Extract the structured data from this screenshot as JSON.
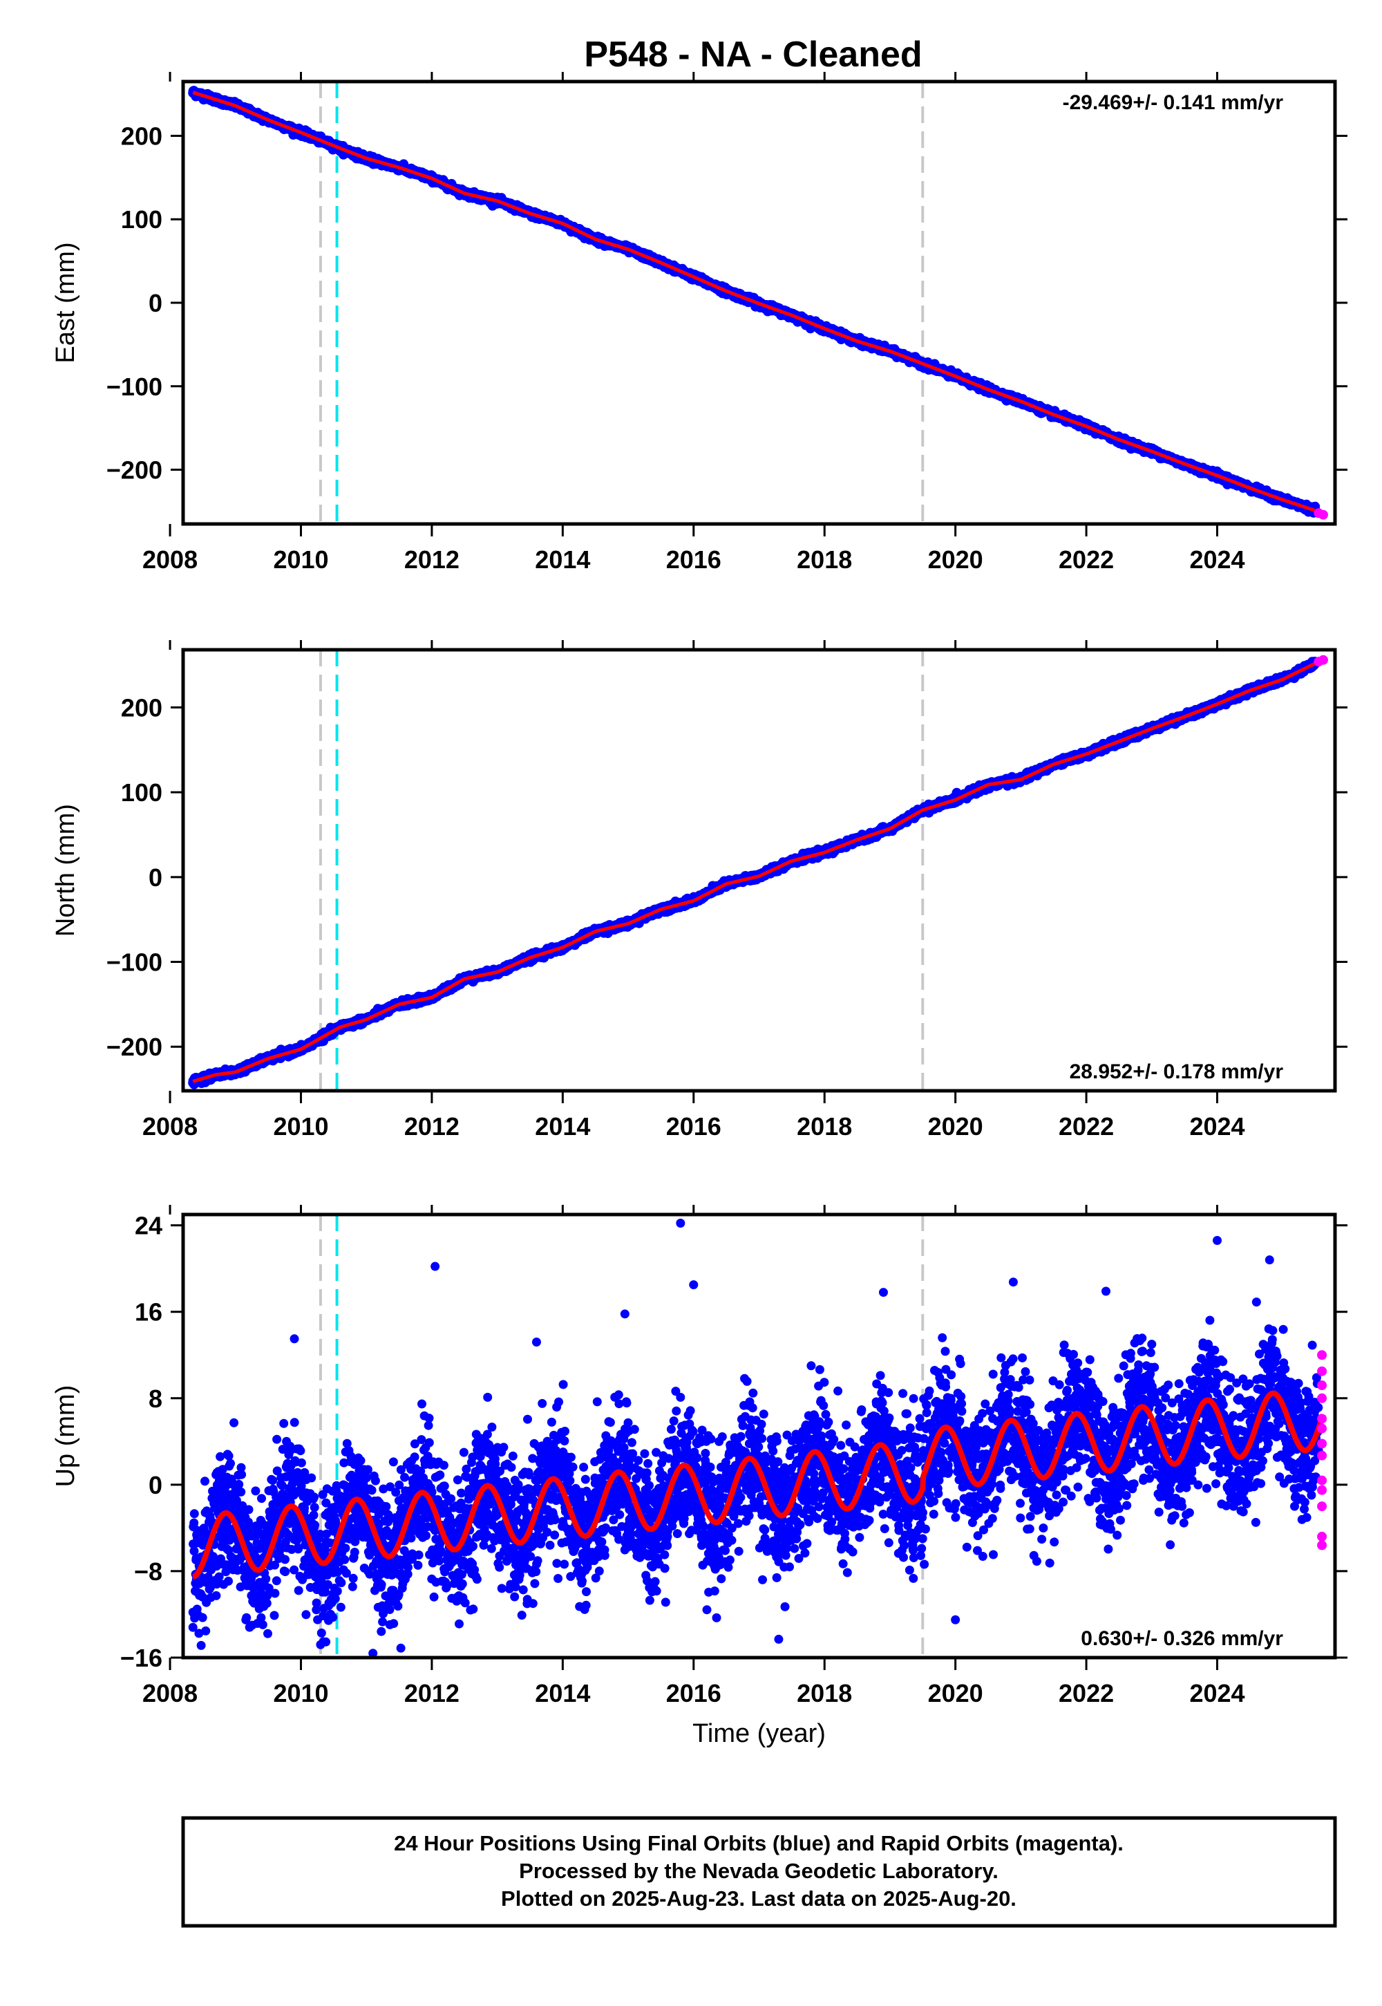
{
  "title": "P548  - NA - Cleaned",
  "footer": {
    "lines": [
      "24 Hour Positions Using Final Orbits (blue) and Rapid Orbits (magenta).",
      "Processed by the Nevada Geodetic Laboratory.",
      "Plotted on 2025-Aug-23. Last data on 2025-Aug-20."
    ]
  },
  "colors": {
    "final_orbits": "#0000ff",
    "rapid_orbits": "#ff00ff",
    "model_fit": "#ff0000",
    "equipment_change": "#c8c8c8",
    "earthquake_event": "#00e5ee"
  },
  "chart_data": [
    {
      "type": "scatter",
      "component": "east",
      "title": "",
      "xlabel": "",
      "ylabel": "East (mm)",
      "xlim": [
        2008.2,
        2025.8
      ],
      "ylim": [
        -265,
        265
      ],
      "x_ticks": [
        "2008",
        "2010",
        "2012",
        "2014",
        "2016",
        "2018",
        "2020",
        "2022",
        "2024"
      ],
      "y_ticks": [
        "200",
        "100",
        "0",
        "−100",
        "−200"
      ],
      "y_tick_values": [
        200,
        100,
        0,
        -100,
        -200
      ],
      "rate_label": "-29.469+/- 0.141 mm/yr",
      "rate_label_position": "top-right",
      "vertical_lines": [
        {
          "x": 2010.3,
          "style": "dashed",
          "color": "gray"
        },
        {
          "x": 2010.55,
          "style": "dashed",
          "color": "cyan"
        },
        {
          "x": 2019.5,
          "style": "dashed",
          "color": "gray"
        }
      ],
      "series": [
        {
          "name": "Final Orbits (blue)",
          "marker": "dot",
          "points": [
            [
              2008.35,
              252
            ],
            [
              2009.0,
              236
            ],
            [
              2009.5,
              219
            ],
            [
              2010.0,
              204
            ],
            [
              2010.6,
              185
            ],
            [
              2011.0,
              173
            ],
            [
              2011.5,
              162
            ],
            [
              2012.0,
              149
            ],
            [
              2012.5,
              131
            ],
            [
              2013.0,
              122
            ],
            [
              2013.5,
              107
            ],
            [
              2014.0,
              95
            ],
            [
              2014.5,
              76
            ],
            [
              2015.0,
              64
            ],
            [
              2015.5,
              48
            ],
            [
              2016.0,
              31
            ],
            [
              2016.5,
              14
            ],
            [
              2017.0,
              -1
            ],
            [
              2017.5,
              -15
            ],
            [
              2018.0,
              -31
            ],
            [
              2018.5,
              -46
            ],
            [
              2019.0,
              -58
            ],
            [
              2019.5,
              -73
            ],
            [
              2020.0,
              -88
            ],
            [
              2020.5,
              -104
            ],
            [
              2021.0,
              -118
            ],
            [
              2021.5,
              -134
            ],
            [
              2022.0,
              -148
            ],
            [
              2022.5,
              -164
            ],
            [
              2023.0,
              -178
            ],
            [
              2023.5,
              -193
            ],
            [
              2024.0,
              -207
            ],
            [
              2024.5,
              -222
            ],
            [
              2025.0,
              -236
            ],
            [
              2025.5,
              -249
            ]
          ]
        },
        {
          "name": "Rapid Orbits (magenta)",
          "marker": "dot",
          "points": [
            [
              2025.55,
              -252
            ],
            [
              2025.62,
              -254
            ]
          ]
        },
        {
          "name": "model fit",
          "marker": "line",
          "points": [
            [
              2008.35,
              252
            ],
            [
              2010.3,
              195
            ],
            [
              2010.55,
              186
            ],
            [
              2019.5,
              -73
            ],
            [
              2025.62,
              -253
            ]
          ]
        }
      ]
    },
    {
      "type": "scatter",
      "component": "north",
      "title": "",
      "xlabel": "",
      "ylabel": "North (mm)",
      "xlim": [
        2008.2,
        2025.8
      ],
      "ylim": [
        -252,
        268
      ],
      "x_ticks": [
        "2008",
        "2010",
        "2012",
        "2014",
        "2016",
        "2018",
        "2020",
        "2022",
        "2024"
      ],
      "y_ticks": [
        "200",
        "100",
        "0",
        "−100",
        "−200"
      ],
      "y_tick_values": [
        200,
        100,
        0,
        -100,
        -200
      ],
      "rate_label": "28.952+/- 0.178 mm/yr",
      "rate_label_position": "bottom-right",
      "vertical_lines": [
        {
          "x": 2010.3,
          "style": "dashed",
          "color": "gray"
        },
        {
          "x": 2010.55,
          "style": "dashed",
          "color": "cyan"
        },
        {
          "x": 2019.5,
          "style": "dashed",
          "color": "gray"
        }
      ],
      "series": [
        {
          "name": "Final Orbits (blue)",
          "marker": "dot",
          "points": [
            [
              2008.35,
              -241
            ],
            [
              2008.7,
              -233
            ],
            [
              2009.0,
              -230
            ],
            [
              2009.5,
              -214
            ],
            [
              2010.0,
              -203
            ],
            [
              2010.6,
              -177
            ],
            [
              2011.0,
              -168
            ],
            [
              2011.5,
              -150
            ],
            [
              2012.0,
              -142
            ],
            [
              2012.5,
              -120
            ],
            [
              2013.0,
              -112
            ],
            [
              2013.5,
              -95
            ],
            [
              2014.0,
              -83
            ],
            [
              2014.5,
              -64
            ],
            [
              2015.0,
              -55
            ],
            [
              2015.5,
              -38
            ],
            [
              2016.0,
              -28
            ],
            [
              2016.5,
              -8
            ],
            [
              2017.0,
              1
            ],
            [
              2017.5,
              19
            ],
            [
              2018.0,
              29
            ],
            [
              2018.5,
              44
            ],
            [
              2019.0,
              57
            ],
            [
              2019.5,
              79
            ],
            [
              2020.0,
              91
            ],
            [
              2020.5,
              109
            ],
            [
              2021.0,
              115
            ],
            [
              2021.5,
              133
            ],
            [
              2022.0,
              145
            ],
            [
              2022.5,
              160
            ],
            [
              2023.0,
              175
            ],
            [
              2023.5,
              189
            ],
            [
              2024.0,
              204
            ],
            [
              2024.5,
              220
            ],
            [
              2025.0,
              233
            ],
            [
              2025.5,
              252
            ]
          ]
        },
        {
          "name": "Rapid Orbits (magenta)",
          "marker": "dot",
          "points": [
            [
              2025.55,
              254
            ],
            [
              2025.62,
              256
            ]
          ]
        },
        {
          "name": "model fit",
          "marker": "line",
          "points": [
            [
              2008.35,
              -241
            ],
            [
              2010.3,
              -190
            ],
            [
              2010.55,
              -178
            ],
            [
              2019.5,
              81
            ],
            [
              2025.62,
              255
            ]
          ]
        }
      ]
    },
    {
      "type": "scatter",
      "component": "up",
      "title": "",
      "xlabel": "Time (year)",
      "ylabel": "Up (mm)",
      "xlim": [
        2008.2,
        2025.8
      ],
      "ylim": [
        -16,
        25
      ],
      "x_ticks": [
        "2008",
        "2010",
        "2012",
        "2014",
        "2016",
        "2018",
        "2020",
        "2022",
        "2024"
      ],
      "y_ticks": [
        "24",
        "16",
        "8",
        "0",
        "−8",
        "−16"
      ],
      "y_tick_values": [
        24,
        16,
        8,
        0,
        -8,
        -16
      ],
      "rate_label": "0.630+/- 0.326 mm/yr",
      "rate_label_position": "bottom-right",
      "vertical_lines": [
        {
          "x": 2010.3,
          "style": "dashed",
          "color": "gray"
        },
        {
          "x": 2010.55,
          "style": "dashed",
          "color": "cyan"
        },
        {
          "x": 2019.5,
          "style": "dashed",
          "color": "gray"
        }
      ],
      "seasonal_model": {
        "rate_mm_per_yr": 0.63,
        "annual_amplitude_mm": 2.8,
        "outliers": [
          [
            2015.8,
            24.2
          ],
          [
            2016.0,
            18.5
          ],
          [
            2012.05,
            20.2
          ],
          [
            2018.9,
            17.8
          ],
          [
            2022.3,
            17.9
          ],
          [
            2024.0,
            22.6
          ],
          [
            2024.8,
            20.8
          ],
          [
            2011.1,
            -15.6
          ],
          [
            2010.3,
            -14.8
          ],
          [
            2017.3,
            -14.3
          ],
          [
            2020.0,
            -12.5
          ],
          [
            2008.35,
            -13.2
          ],
          [
            2014.95,
            15.8
          ],
          [
            2009.9,
            13.5
          ],
          [
            2013.6,
            13.2
          ],
          [
            2019.8,
            13.6
          ],
          [
            2023.0,
            13.0
          ],
          [
            2024.6,
            16.9
          ]
        ]
      },
      "series": [
        {
          "name": "Final Orbits (blue)",
          "marker": "dot",
          "points": []
        },
        {
          "name": "Rapid Orbits (magenta)",
          "marker": "dot",
          "points": [
            [
              2025.6,
              12.0
            ],
            [
              2025.6,
              10.5
            ],
            [
              2025.6,
              9.2
            ],
            [
              2025.6,
              8.0
            ],
            [
              2025.6,
              6.1
            ],
            [
              2025.6,
              5.2
            ],
            [
              2025.6,
              3.8
            ],
            [
              2025.6,
              2.7
            ],
            [
              2025.6,
              0.4
            ],
            [
              2025.6,
              -0.5
            ],
            [
              2025.6,
              -2.0
            ],
            [
              2025.6,
              -4.8
            ],
            [
              2025.6,
              -5.6
            ]
          ]
        },
        {
          "name": "model fit",
          "marker": "line",
          "points": []
        }
      ]
    }
  ]
}
